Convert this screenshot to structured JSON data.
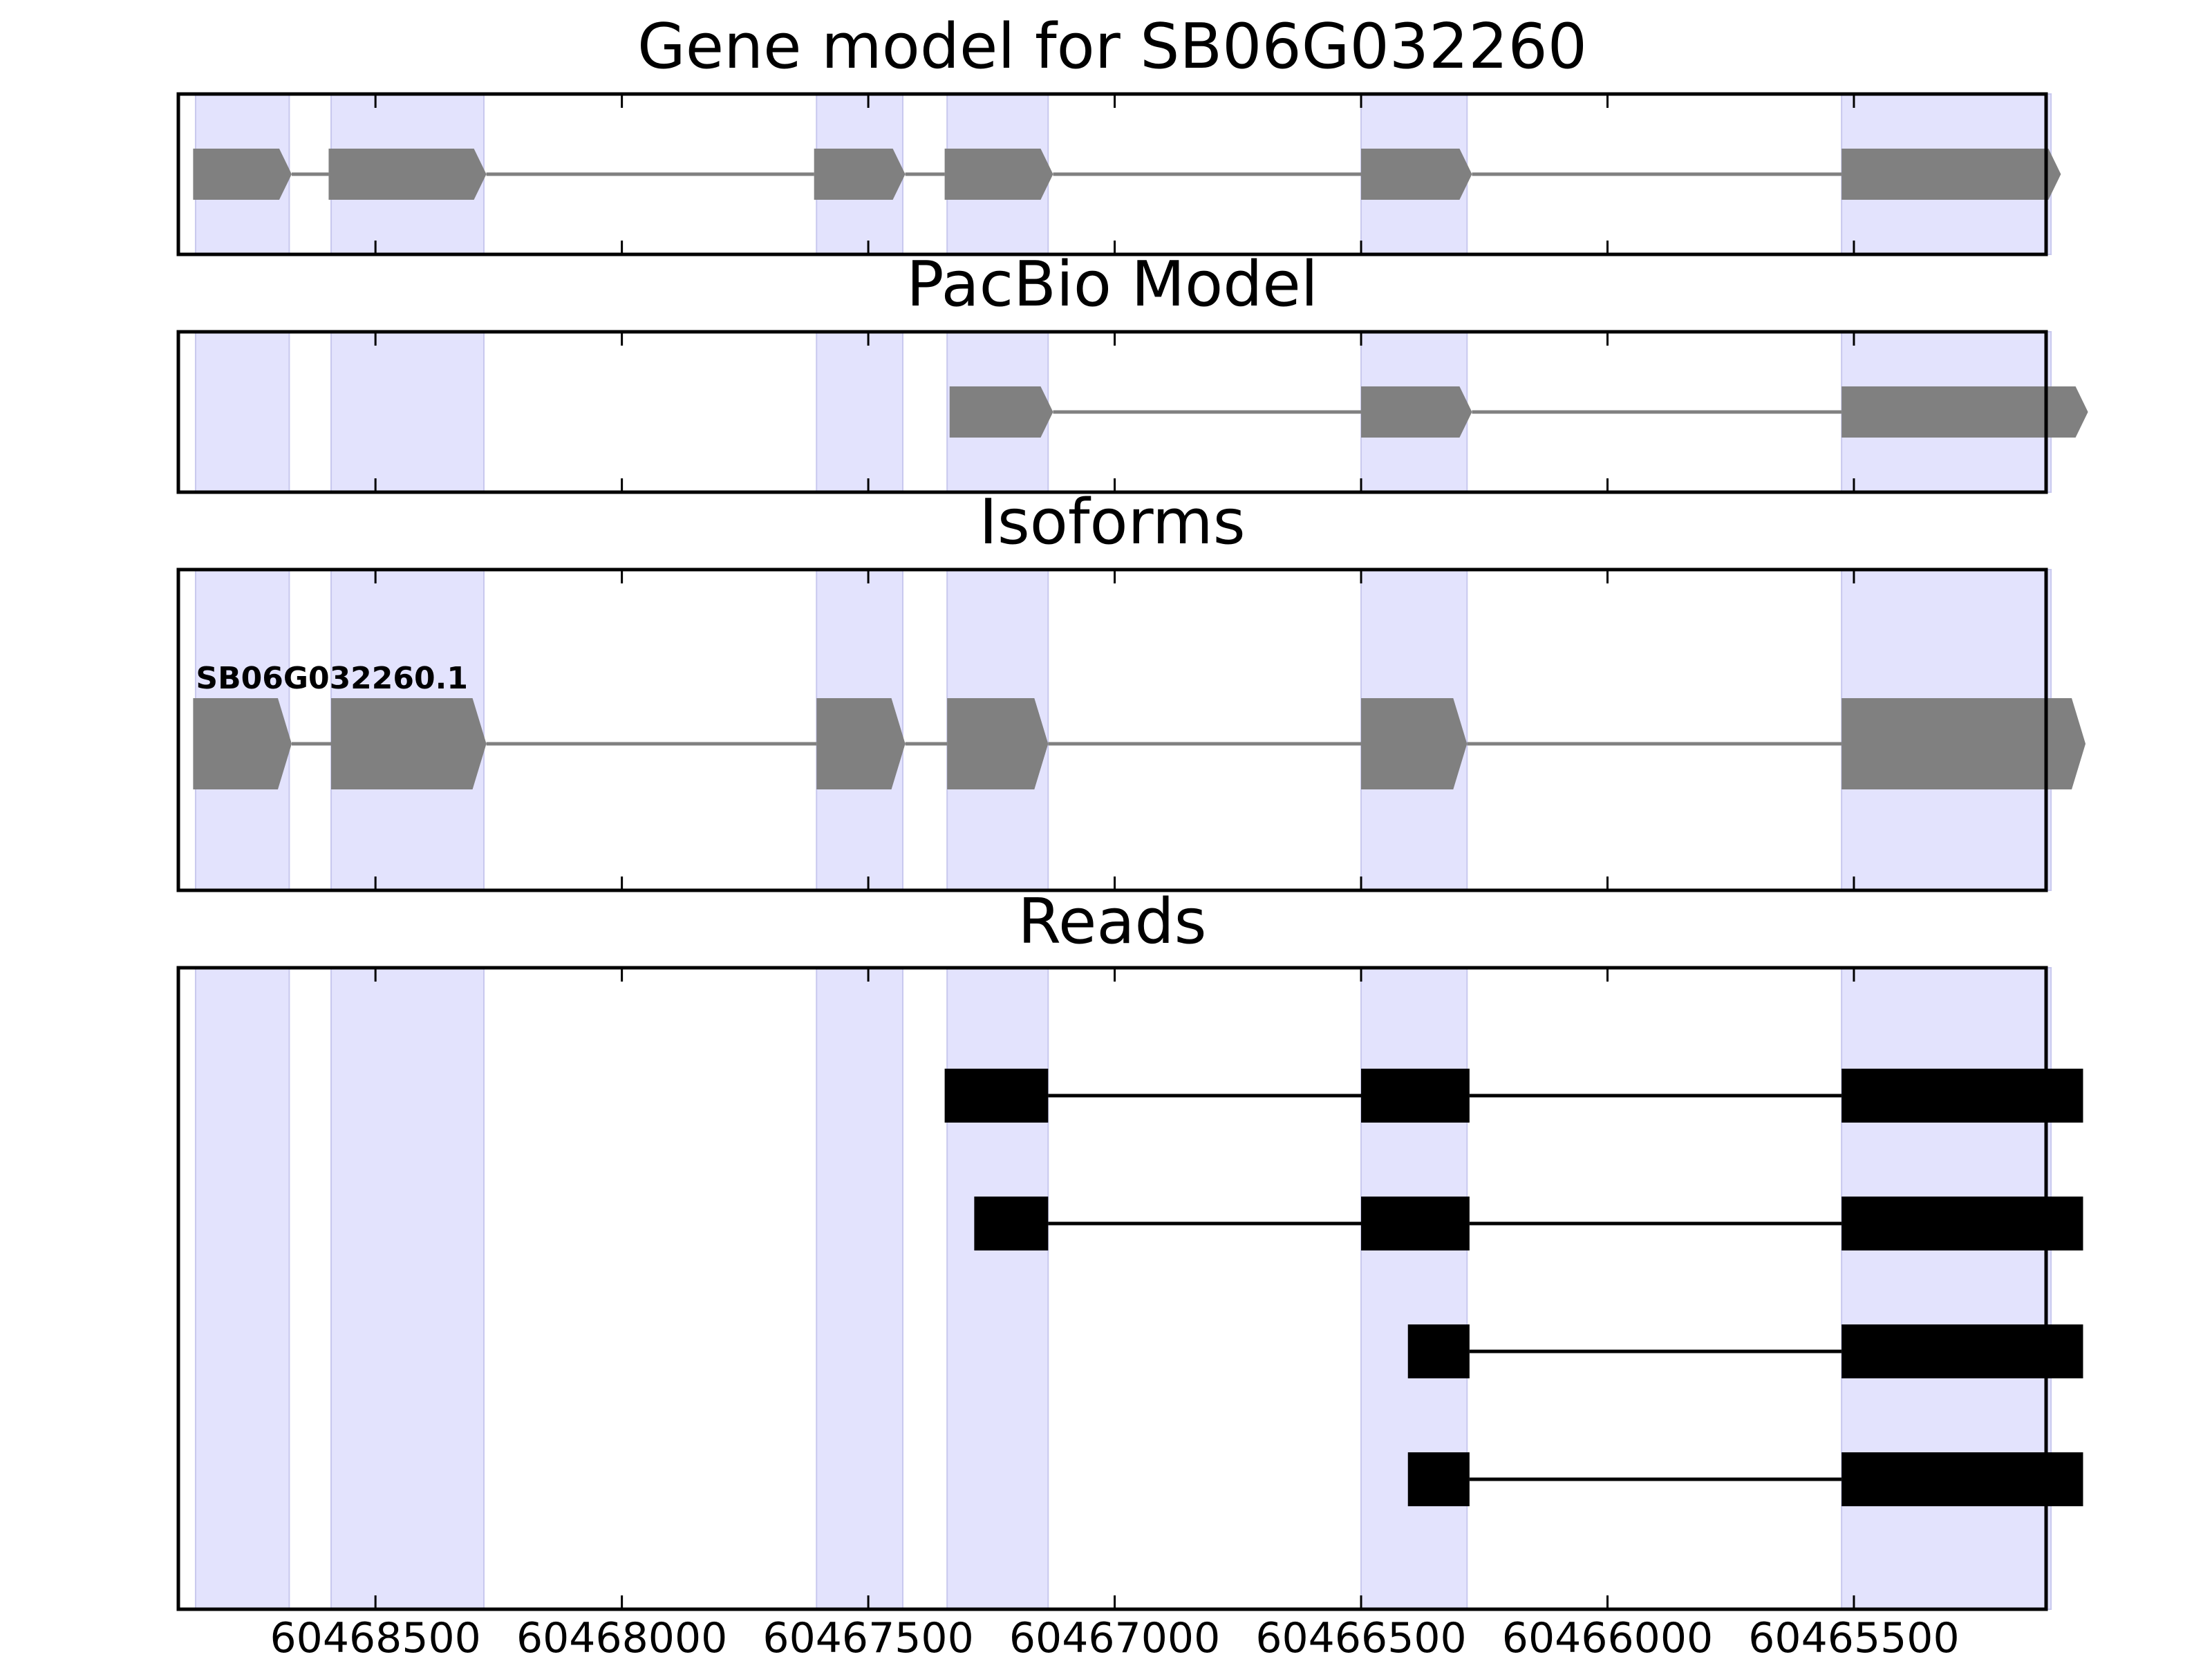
{
  "chart_data": {
    "type": "gene-track",
    "x_reversed": true,
    "xlim": [
      60468900,
      60465110
    ],
    "xticks": [
      60468500,
      60468000,
      60467500,
      60467000,
      60466500,
      60466000,
      60465500
    ],
    "xtick_labels": [
      "60468500",
      "60468000",
      "60467500",
      "60467000",
      "60466500",
      "60466000",
      "60465500"
    ],
    "colors": {
      "feature": "#808080",
      "read": "#000000",
      "exon_shade": "#e3e3fd",
      "intron_line": "#808080"
    },
    "shaded_exons": [
      [
        60468865,
        60468675
      ],
      [
        60468590,
        60468280
      ],
      [
        60467605,
        60467430
      ],
      [
        60467340,
        60467135
      ],
      [
        60466500,
        60466285
      ],
      [
        60465525,
        60465100
      ]
    ],
    "panels": [
      {
        "title": "Gene model for SB06G032260",
        "features": [
          {
            "exons": [
              [
                60468870,
                60468670
              ],
              [
                60468595,
                60468275
              ],
              [
                60467610,
                60467425
              ],
              [
                60467345,
                60467125
              ],
              [
                60466500,
                60466275
              ],
              [
                60465525,
                60465080
              ]
            ]
          }
        ]
      },
      {
        "title": "PacBio Model",
        "features": [
          {
            "exons": [
              [
                60467335,
                60467125
              ],
              [
                60466500,
                60466275
              ],
              [
                60465525,
                60465025
              ]
            ]
          }
        ]
      },
      {
        "title": "Isoforms",
        "features": [
          {
            "label": "SB06G032260.1",
            "exons": [
              [
                60468870,
                60468670
              ],
              [
                60468590,
                60468275
              ],
              [
                60467605,
                60467425
              ],
              [
                60467340,
                60467135
              ],
              [
                60466500,
                60466285
              ],
              [
                60465525,
                60465030
              ]
            ]
          }
        ]
      },
      {
        "title": "Reads",
        "features": [
          {
            "exons": [
              [
                60467345,
                60467135
              ],
              [
                60466500,
                60466280
              ],
              [
                60465525,
                60465035
              ]
            ]
          },
          {
            "exons": [
              [
                60467285,
                60467135
              ],
              [
                60466500,
                60466280
              ],
              [
                60465525,
                60465035
              ]
            ]
          },
          {
            "exons": [
              [
                60466405,
                60466280
              ],
              [
                60465525,
                60465035
              ]
            ]
          },
          {
            "exons": [
              [
                60466405,
                60466280
              ],
              [
                60465525,
                60465035
              ]
            ]
          }
        ]
      }
    ]
  }
}
